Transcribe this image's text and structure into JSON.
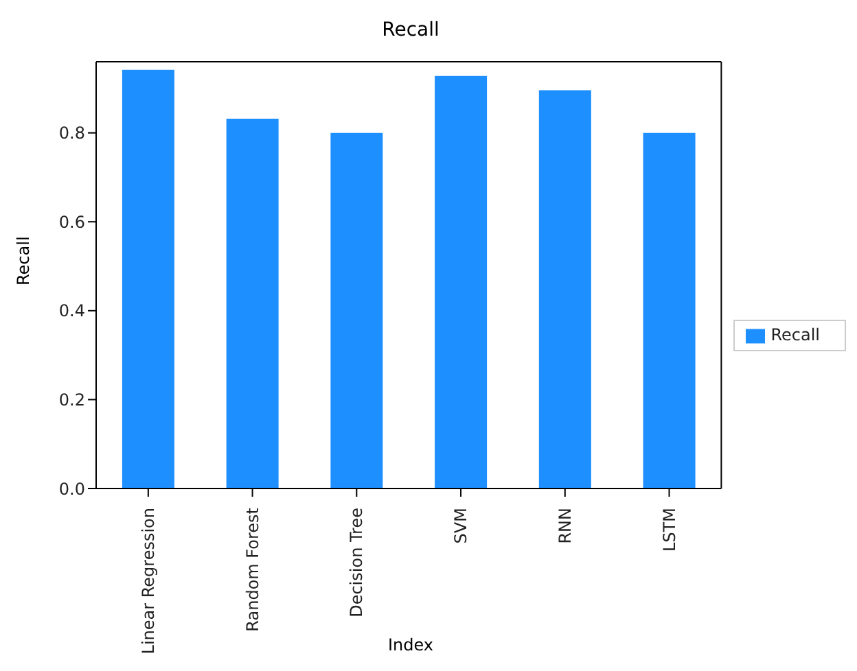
{
  "chart_data": {
    "type": "bar",
    "title": "Recall",
    "xlabel": "Index",
    "ylabel": "Recall",
    "categories": [
      "Linear Regression",
      "Random Forest",
      "Decision Tree",
      "SVM",
      "RNN",
      "LSTM"
    ],
    "series": [
      {
        "name": "Recall",
        "color": "#1e8fff",
        "values": [
          0.942,
          0.832,
          0.8,
          0.928,
          0.896,
          0.8
        ]
      }
    ],
    "ylim": [
      0,
      0.96
    ],
    "yticks": [
      {
        "value": 0,
        "label": "0.0"
      },
      {
        "value": 0.2,
        "label": "0.2"
      },
      {
        "value": 0.4,
        "label": "0.4"
      },
      {
        "value": 0.6,
        "label": "0.6"
      },
      {
        "value": 0.8,
        "label": "0.8"
      }
    ],
    "grid": false,
    "legend": "right"
  }
}
